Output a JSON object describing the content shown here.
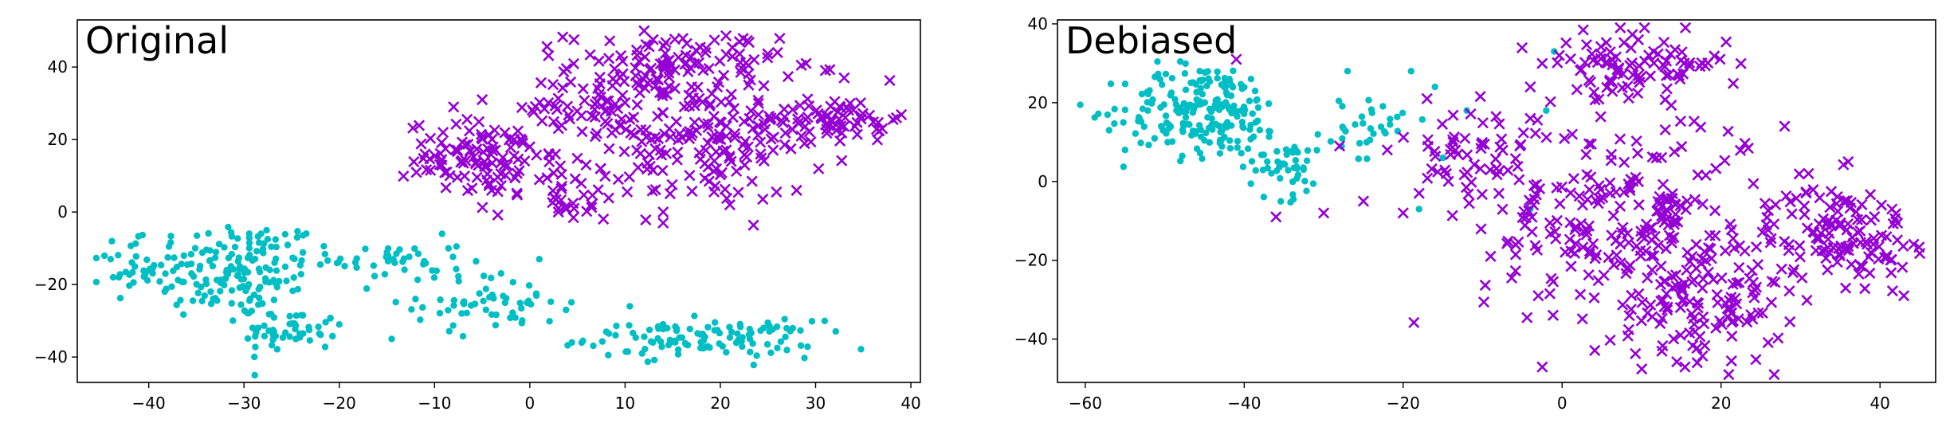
{
  "colors": {
    "group_a": "#00BFC4",
    "group_b": "#9400D3",
    "axes": "#000000",
    "background": "#ffffff"
  },
  "chart_data": [
    {
      "type": "scatter",
      "title": "Original",
      "xlabel": "",
      "ylabel": "",
      "xlim": [
        -47.5,
        41
      ],
      "ylim": [
        -47,
        53
      ],
      "xticks": [
        -40,
        -30,
        -20,
        -10,
        0,
        10,
        20,
        30,
        40
      ],
      "xtick_labels": [
        "−40",
        "−30",
        "−20",
        "−10",
        "0",
        "10",
        "20",
        "30",
        "40"
      ],
      "yticks": [
        -40,
        -20,
        0,
        20,
        40
      ],
      "ytick_labels": [
        "−40",
        "−20",
        "0",
        "20",
        "40"
      ],
      "grid": false,
      "legend": "none",
      "series": [
        {
          "marker": "circle",
          "color": "#00BFC4",
          "clusters": [
            {
              "cx": -31,
              "cy": -16,
              "sx": 5,
              "sy": 7,
              "n": 170
            },
            {
              "cx": -25,
              "cy": -33,
              "sx": 2.5,
              "sy": 3,
              "n": 50
            },
            {
              "cx": -42,
              "cy": -16,
              "sx": 1.5,
              "sy": 4,
              "n": 25
            },
            {
              "cx": -14,
              "cy": -13,
              "sx": 3.5,
              "sy": 3,
              "n": 40
            },
            {
              "cx": -4,
              "cy": -25,
              "sx": 4,
              "sy": 4,
              "n": 55
            },
            {
              "cx": 18,
              "cy": -35,
              "sx": 6,
              "sy": 2.5,
              "n": 115
            }
          ],
          "points": [
            [
              -44,
              -13
            ],
            [
              -14.5,
              -35
            ],
            [
              -20,
              -31
            ],
            [
              -12,
              -24
            ],
            [
              1,
              -13
            ],
            [
              3.8,
              -27
            ],
            [
              9,
              -34
            ],
            [
              10.5,
              -26
            ]
          ]
        },
        {
          "marker": "x",
          "color": "#9400D3",
          "clusters": [
            {
              "cx": -5,
              "cy": 15,
              "sx": 4,
              "sy": 5,
              "n": 95
            },
            {
              "cx": 5,
              "cy": 28,
              "sx": 3,
              "sy": 3,
              "n": 40
            },
            {
              "cx": 15,
              "cy": 40,
              "sx": 5.5,
              "sy": 5,
              "n": 110
            },
            {
              "cx": 17,
              "cy": 20,
              "sx": 7,
              "sy": 9,
              "n": 170
            },
            {
              "cx": 32,
              "cy": 26,
              "sx": 3.5,
              "sy": 3,
              "n": 65
            },
            {
              "cx": 4,
              "cy": 7,
              "sx": 4,
              "sy": 5,
              "n": 40
            }
          ],
          "points": [
            [
              -11,
              16
            ],
            [
              -8,
              29
            ],
            [
              -5,
              31
            ],
            [
              -4,
              6
            ],
            [
              0,
              18
            ],
            [
              12,
              50
            ],
            [
              22,
              47
            ],
            [
              26,
              44
            ],
            [
              29,
              41
            ],
            [
              33,
              37
            ],
            [
              37,
              23
            ],
            [
              28,
              6
            ],
            [
              21,
              2
            ],
            [
              14,
              0
            ],
            [
              14,
              -3
            ],
            [
              3,
              0
            ]
          ]
        }
      ]
    },
    {
      "type": "scatter",
      "title": "Debiased",
      "xlabel": "",
      "ylabel": "",
      "xlim": [
        -63.5,
        47
      ],
      "ylim": [
        -51,
        41
      ],
      "xticks": [
        -60,
        -40,
        -20,
        0,
        20,
        40
      ],
      "xtick_labels": [
        "−60",
        "−40",
        "−20",
        "0",
        "20",
        "40"
      ],
      "yticks": [
        -40,
        -20,
        0,
        20,
        40
      ],
      "ytick_labels": [
        "−40",
        "−20",
        "0",
        "20",
        "40"
      ],
      "grid": false,
      "legend": "none",
      "series": [
        {
          "marker": "circle",
          "color": "#00BFC4",
          "clusters": [
            {
              "cx": -45,
              "cy": 18,
              "sx": 5,
              "sy": 6,
              "n": 200
            },
            {
              "cx": -35,
              "cy": 4,
              "sx": 3,
              "sy": 4,
              "n": 50
            },
            {
              "cx": -24,
              "cy": 14,
              "sx": 2,
              "sy": 4,
              "n": 30
            }
          ],
          "points": [
            [
              -57,
              13
            ],
            [
              -55,
              8
            ],
            [
              -27,
              28
            ],
            [
              -19,
              28
            ],
            [
              -18,
              -7
            ],
            [
              -15,
              6
            ],
            [
              -12,
              18
            ],
            [
              -4,
              -7
            ],
            [
              -2,
              18
            ],
            [
              -1,
              33
            ],
            [
              -16,
              24
            ]
          ]
        },
        {
          "marker": "x",
          "color": "#9400D3",
          "clusters": [
            {
              "cx": 9,
              "cy": 30,
              "sx": 6,
              "sy": 4,
              "n": 90
            },
            {
              "cx": 8,
              "cy": -10,
              "sx": 9,
              "sy": 14,
              "n": 250
            },
            {
              "cx": 18,
              "cy": -30,
              "sx": 5,
              "sy": 8,
              "n": 110
            },
            {
              "cx": 35,
              "cy": -13,
              "sx": 4.5,
              "sy": 6,
              "n": 120
            },
            {
              "cx": -12,
              "cy": 6,
              "sx": 4,
              "sy": 8,
              "n": 50
            }
          ],
          "points": [
            [
              -41,
              31
            ],
            [
              -36,
              -9
            ],
            [
              -30,
              -8
            ],
            [
              -28,
              9
            ],
            [
              -25,
              -5
            ],
            [
              -22,
              8
            ],
            [
              -20,
              -8
            ],
            [
              -18,
              -3
            ],
            [
              -17,
              21
            ],
            [
              -4,
              24
            ],
            [
              -4,
              16
            ],
            [
              -9,
              -19
            ],
            [
              -3,
              -29
            ],
            [
              17,
              -46
            ],
            [
              28,
              14
            ],
            [
              31,
              2
            ],
            [
              36,
              5
            ],
            [
              43,
              -29
            ]
          ]
        }
      ]
    }
  ]
}
